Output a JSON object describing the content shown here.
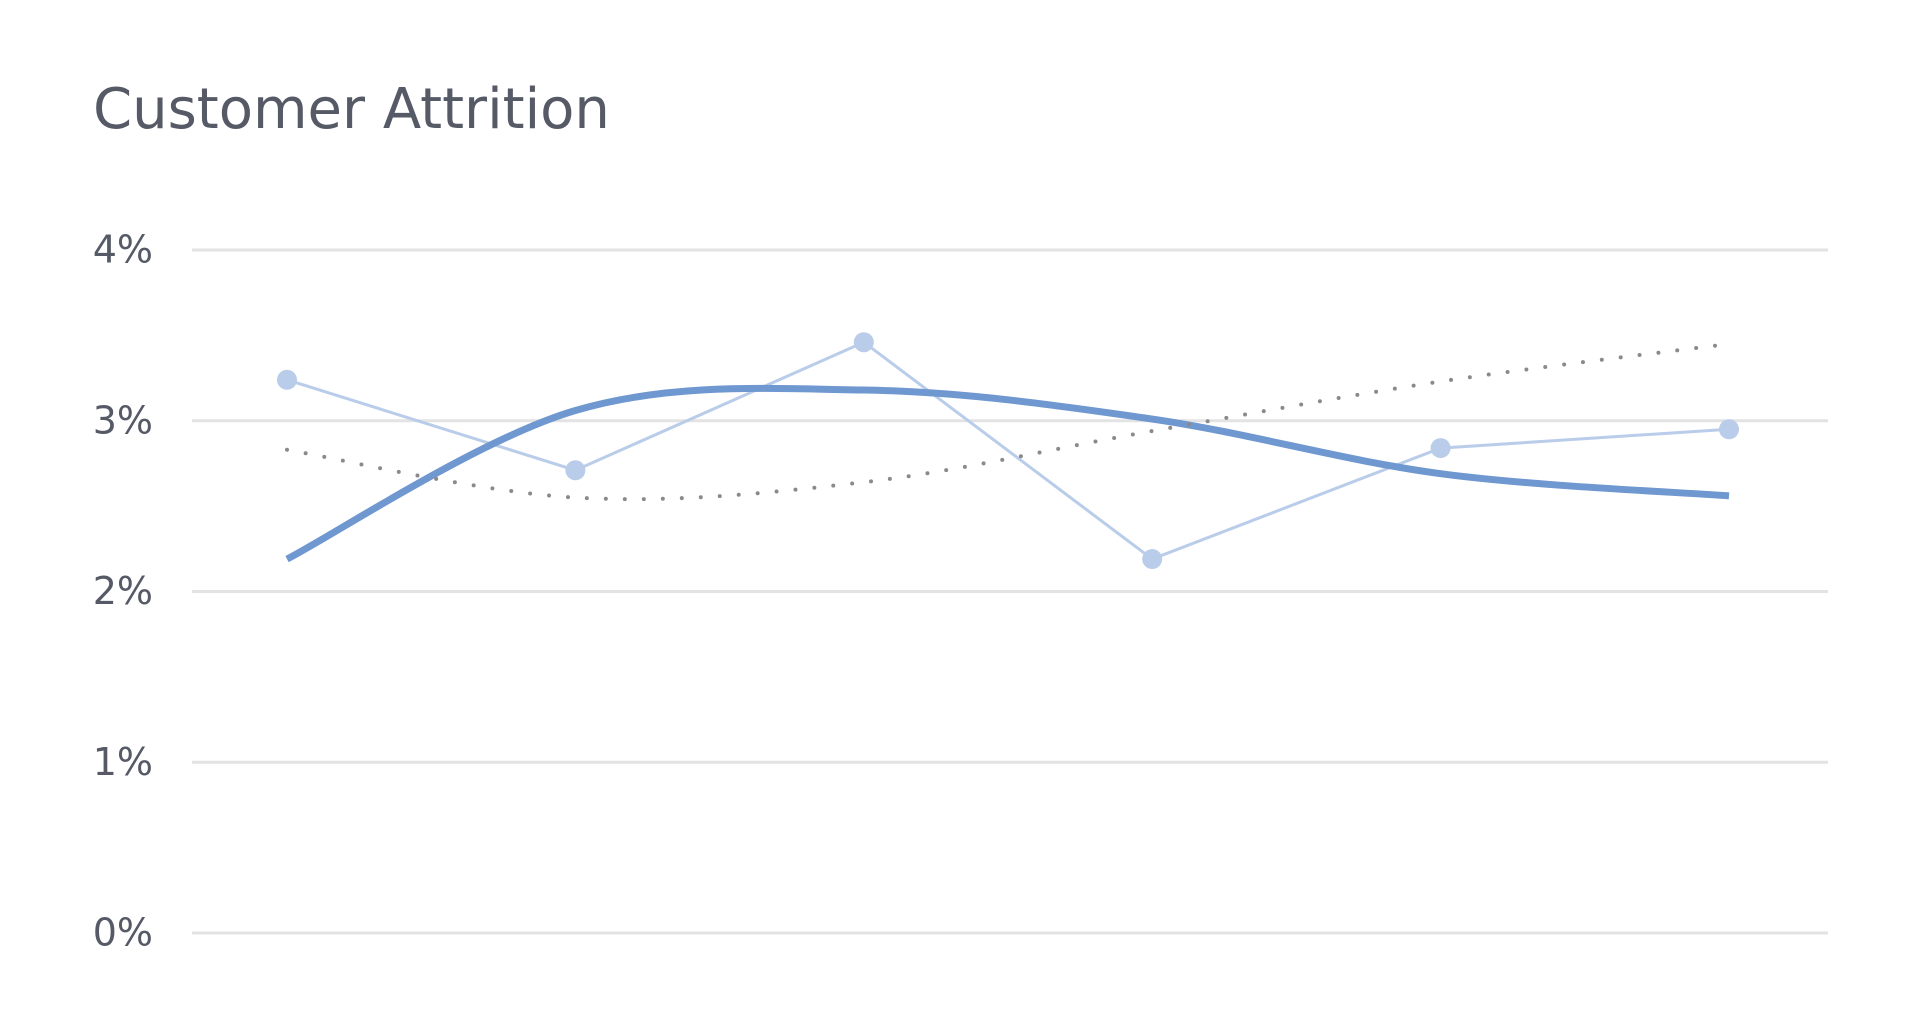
{
  "chart_data": {
    "type": "line",
    "title": "Customer Attrition",
    "ylim": [
      0,
      4
    ],
    "yticks": [
      {
        "value": 0,
        "label": "0%"
      },
      {
        "value": 1,
        "label": "1%"
      },
      {
        "value": 2,
        "label": "2%"
      },
      {
        "value": 3,
        "label": "3%"
      },
      {
        "value": 4,
        "label": "4%"
      }
    ],
    "grid": true,
    "series": [
      {
        "color": "#b9cce9",
        "style": "markers",
        "values": [
          3.24,
          2.71,
          3.46,
          2.19,
          2.84,
          2.95
        ]
      },
      {
        "color": "#6f97d0",
        "style": "smooth",
        "values": [
          2.19,
          3.06,
          3.18,
          3.01,
          2.69,
          2.56
        ]
      },
      {
        "color": "#8a8a8a",
        "style": "dotted",
        "values": [
          2.83,
          2.55,
          2.64,
          2.94,
          3.23,
          3.45
        ]
      }
    ]
  }
}
